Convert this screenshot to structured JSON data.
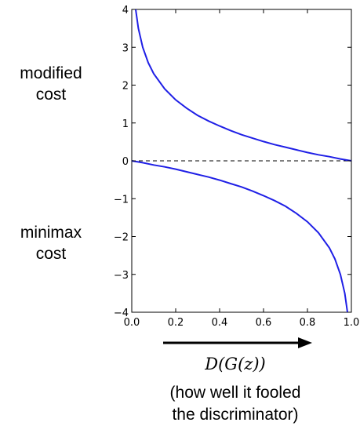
{
  "side_labels": {
    "modified_line1": "modified",
    "modified_line2": "cost",
    "minimax_line1": "minimax",
    "minimax_line2": "cost"
  },
  "x_axis_label": "D(G(z))",
  "caption_line1": "(how well it fooled",
  "caption_line2": "the discriminator)",
  "colors": {
    "curve": "#1f1fe6",
    "axis": "#000000",
    "zero_line": "#000000"
  },
  "chart_data": {
    "type": "line",
    "xlim": [
      0.0,
      1.0
    ],
    "ylim": [
      -4,
      4
    ],
    "xticks": [
      "0.0",
      "0.2",
      "0.4",
      "0.6",
      "0.8",
      "1.0"
    ],
    "yticks": [
      "4",
      "3",
      "2",
      "1",
      "0",
      "−1",
      "−2",
      "−3",
      "−4"
    ],
    "grid": false,
    "legend": "none",
    "series": [
      {
        "x": [
          0.018,
          0.03,
          0.05,
          0.075,
          0.1,
          0.15,
          0.2,
          0.25,
          0.3,
          0.35,
          0.4,
          0.45,
          0.5,
          0.55,
          0.6,
          0.65,
          0.7,
          0.75,
          0.8,
          0.85,
          0.9,
          0.95,
          1.0
        ],
        "y": [
          4.0,
          3.5,
          3.0,
          2.59,
          2.3,
          1.9,
          1.61,
          1.39,
          1.2,
          1.05,
          0.92,
          0.8,
          0.69,
          0.6,
          0.51,
          0.43,
          0.36,
          0.29,
          0.22,
          0.16,
          0.11,
          0.05,
          0.0
        ]
      },
      {
        "x": [
          0.0,
          0.05,
          0.1,
          0.15,
          0.2,
          0.25,
          0.3,
          0.35,
          0.4,
          0.45,
          0.5,
          0.55,
          0.6,
          0.65,
          0.7,
          0.75,
          0.8,
          0.85,
          0.9,
          0.925,
          0.95,
          0.97,
          0.982
        ],
        "y": [
          0.0,
          -0.05,
          -0.11,
          -0.16,
          -0.22,
          -0.29,
          -0.36,
          -0.43,
          -0.51,
          -0.6,
          -0.69,
          -0.8,
          -0.92,
          -1.05,
          -1.2,
          -1.39,
          -1.61,
          -1.9,
          -2.3,
          -2.59,
          -3.0,
          -3.5,
          -4.0
        ]
      }
    ],
    "reference_line": {
      "y": 0,
      "style": "dashed"
    }
  }
}
